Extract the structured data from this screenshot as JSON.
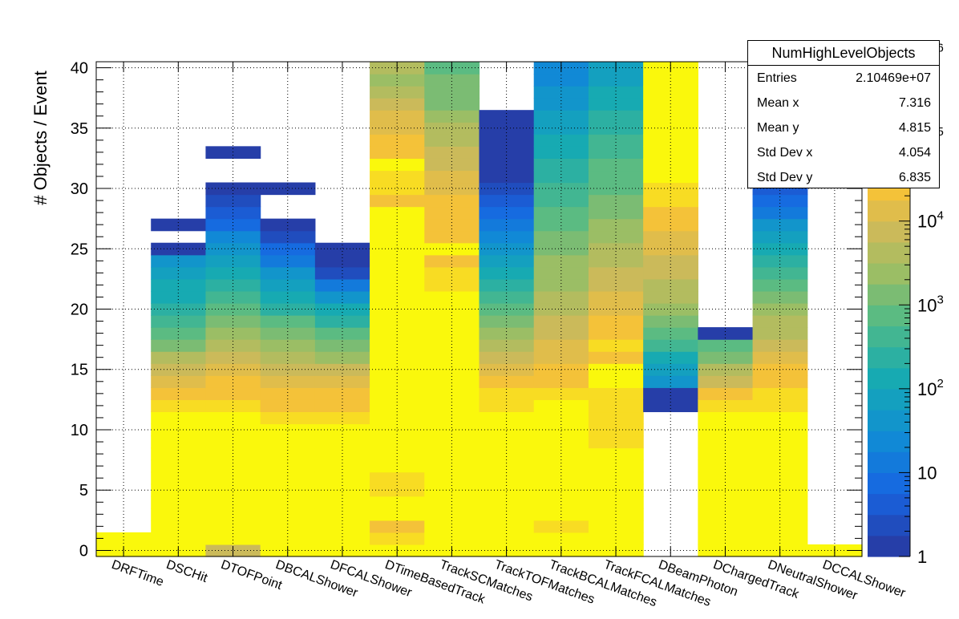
{
  "stats": {
    "title": "NumHighLevelObjects",
    "rows": [
      {
        "label": "Entries",
        "value": "2.10469e+07"
      },
      {
        "label": "Mean x",
        "value": "7.316"
      },
      {
        "label": "Mean y",
        "value": "4.815"
      },
      {
        "label": "Std Dev x",
        "value": "4.054"
      },
      {
        "label": "Std Dev y",
        "value": "6.835"
      }
    ]
  },
  "chart_data": {
    "type": "heatmap",
    "title": "",
    "xlabel": "",
    "ylabel": "# Objects / Event",
    "zscale": "log",
    "zlim": [
      1,
      100000
    ],
    "ylim": [
      -0.5,
      40.5
    ],
    "grid": true,
    "categories": [
      "DRFTime",
      "DSCHit",
      "DTOFPoint",
      "DBCALShower",
      "DFCALShower",
      "DTimeBasedTrack",
      "TrackSCMatches",
      "TrackTOFMatches",
      "TrackBCALMatches",
      "TrackFCALMatches",
      "DBeamPhoton",
      "DChargedTrack",
      "DNeutralShower",
      "DCCALShower"
    ],
    "y_ticks": [
      0,
      5,
      10,
      15,
      20,
      25,
      30,
      35,
      40
    ],
    "z_ticks": [
      {
        "value": 1,
        "label": "1"
      },
      {
        "value": 10,
        "label": "10"
      },
      {
        "value": 100,
        "label": "10^2"
      },
      {
        "value": 1000,
        "label": "10^3"
      },
      {
        "value": 10000,
        "label": "10^4"
      }
    ],
    "z_ticks_partial": [
      {
        "value": 100000,
        "label": "10^5"
      },
      {
        "value": 1000000,
        "label": "10^6"
      }
    ],
    "log10_counts": [
      {
        "0": 6.15,
        "1": 6.65
      },
      {
        "0": 5.2,
        "1": 5.25,
        "2": 5.2,
        "3": 5.15,
        "4": 5.2,
        "5": 5.25,
        "6": 5.25,
        "7": 5.25,
        "8": 5.2,
        "9": 5.1,
        "10": 4.95,
        "11": 4.75,
        "12": 4.55,
        "13": 4.3,
        "14": 4.05,
        "15": 3.8,
        "16": 3.5,
        "17": 3.2,
        "18": 2.9,
        "19": 2.6,
        "20": 2.4,
        "21": 2.2,
        "22": 2.0,
        "23": 1.8,
        "24": 1.6,
        "25": 0.15,
        "27": 0.15
      },
      {
        "0": 3.8,
        "1": 4.8,
        "2": 4.95,
        "3": 5.5,
        "4": 5.5,
        "5": 5.55,
        "6": 5.6,
        "7": 5.35,
        "8": 5.2,
        "9": 5.05,
        "10": 4.95,
        "11": 4.8,
        "12": 4.65,
        "13": 4.45,
        "14": 4.25,
        "15": 4.05,
        "16": 3.85,
        "17": 3.6,
        "18": 3.4,
        "19": 3.15,
        "20": 2.9,
        "21": 2.65,
        "22": 2.4,
        "23": 2.15,
        "24": 1.9,
        "25": 1.6,
        "26": 1.25,
        "27": 0.85,
        "28": 0.5,
        "29": 0.3,
        "30": 0.15,
        "33": 0.15
      },
      {
        "0": 5.2,
        "1": 5.25,
        "2": 5.25,
        "3": 5.25,
        "4": 5.25,
        "5": 5.2,
        "6": 5.2,
        "7": 5.15,
        "8": 5.05,
        "9": 4.9,
        "10": 4.75,
        "11": 4.6,
        "12": 4.45,
        "13": 4.3,
        "14": 4.1,
        "15": 3.9,
        "16": 3.65,
        "17": 3.35,
        "18": 3.05,
        "19": 2.75,
        "20": 2.45,
        "21": 2.15,
        "22": 1.85,
        "23": 1.5,
        "24": 1.15,
        "25": 0.75,
        "26": 0.3,
        "27": 0.15,
        "30": 0.15
      },
      {
        "0": 5.2,
        "1": 5.5,
        "2": 5.45,
        "3": 5.4,
        "4": 5.3,
        "5": 5.25,
        "6": 5.2,
        "7": 5.15,
        "8": 5.05,
        "9": 4.9,
        "10": 4.75,
        "11": 4.6,
        "12": 4.45,
        "13": 4.25,
        "14": 4.0,
        "15": 3.75,
        "16": 3.45,
        "17": 3.1,
        "18": 2.75,
        "19": 2.4,
        "20": 2.0,
        "21": 1.6,
        "22": 1.2,
        "23": 0.35,
        "24": 0.15,
        "25": 0.15
      },
      {
        "0": 5.7,
        "1": 4.6,
        "2": 4.4,
        "3": 5.5,
        "4": 5.35,
        "5": 4.6,
        "6": 4.6,
        "7": 5.3,
        "8": 5.25,
        "9": 5.25,
        "10": 5.2,
        "11": 5.15,
        "12": 5.55,
        "13": 5.25,
        "14": 5.3,
        "15": 5.5,
        "16": 5.2,
        "17": 5.2,
        "18": 5.0,
        "19": 5.2,
        "20": 5.45,
        "21": 5.05,
        "22": 4.85,
        "23": 4.85,
        "24": 4.9,
        "25": 5.3,
        "26": 4.85,
        "27": 5.3,
        "28": 4.75,
        "29": 4.35,
        "30": 4.55,
        "31": 4.6,
        "32": 4.85,
        "33": 4.4,
        "34": 4.3,
        "35": 4.15,
        "36": 4.0,
        "37": 3.8,
        "38": 3.6,
        "39": 3.3,
        "40": 3.55
      },
      {
        "0": 5.7,
        "1": 4.85,
        "2": 4.85,
        "3": 5.3,
        "4": 5.4,
        "5": 5.0,
        "6": 5.05,
        "7": 5.3,
        "8": 5.2,
        "9": 5.2,
        "10": 5.15,
        "11": 5.1,
        "12": 5.2,
        "13": 5.1,
        "14": 5.2,
        "15": 5.3,
        "16": 4.95,
        "17": 5.0,
        "18": 4.85,
        "19": 4.9,
        "20": 5.0,
        "21": 4.8,
        "22": 4.7,
        "23": 4.6,
        "24": 4.4,
        "25": 4.85,
        "26": 4.45,
        "27": 4.3,
        "28": 4.45,
        "29": 4.3,
        "30": 4.1,
        "31": 4.0,
        "32": 3.85,
        "33": 3.75,
        "34": 3.55,
        "35": 3.5,
        "36": 3.35,
        "37": 3.2,
        "38": 3.1,
        "39": 3.0,
        "40": 2.85
      },
      {
        "0": 5.7,
        "1": 5.25,
        "2": 5.2,
        "3": 5.6,
        "4": 5.3,
        "5": 5.1,
        "6": 5.05,
        "7": 5.2,
        "8": 5.05,
        "9": 5.0,
        "10": 4.95,
        "11": 4.8,
        "12": 4.65,
        "13": 4.5,
        "14": 4.3,
        "15": 4.05,
        "16": 3.8,
        "17": 3.55,
        "18": 3.3,
        "19": 3.0,
        "20": 2.75,
        "21": 2.5,
        "22": 2.25,
        "23": 2.0,
        "24": 1.75,
        "25": 1.5,
        "26": 1.25,
        "27": 1.0,
        "28": 0.75,
        "29": 0.5,
        "30": 0.35,
        "31": 0.2,
        "32": 0.15,
        "33": 0.15,
        "34": 0.15,
        "35": 0.15,
        "36": 0.15
      },
      {
        "0": 5.7,
        "1": 4.9,
        "2": 4.7,
        "3": 5.35,
        "4": 5.3,
        "5": 5.15,
        "6": 5.1,
        "7": 5.15,
        "8": 5.0,
        "9": 4.95,
        "10": 4.9,
        "11": 4.85,
        "12": 4.8,
        "13": 4.6,
        "14": 4.45,
        "15": 4.3,
        "16": 4.15,
        "17": 4.0,
        "18": 3.9,
        "19": 3.8,
        "20": 3.7,
        "21": 3.55,
        "22": 3.45,
        "23": 3.35,
        "24": 3.25,
        "25": 3.1,
        "26": 3.0,
        "27": 2.85,
        "28": 2.75,
        "29": 2.6,
        "30": 2.5,
        "31": 2.4,
        "32": 2.25,
        "33": 2.15,
        "34": 2.0,
        "35": 1.9,
        "36": 1.8,
        "37": 1.65,
        "38": 1.55,
        "39": 1.4,
        "40": 1.3
      },
      {
        "0": 5.7,
        "1": 5.05,
        "2": 4.95,
        "3": 5.45,
        "4": 5.35,
        "5": 5.2,
        "6": 5.15,
        "7": 5.35,
        "8": 5.2,
        "9": 4.65,
        "10": 4.6,
        "11": 4.65,
        "12": 4.55,
        "13": 4.65,
        "14": 4.75,
        "15": 4.8,
        "16": 4.45,
        "17": 4.5,
        "18": 4.3,
        "19": 4.25,
        "20": 4.2,
        "21": 4.05,
        "22": 3.95,
        "23": 3.8,
        "24": 3.65,
        "25": 3.5,
        "26": 3.4,
        "27": 3.3,
        "28": 3.2,
        "29": 3.05,
        "30": 2.95,
        "31": 2.85,
        "32": 2.75,
        "33": 2.6,
        "34": 2.5,
        "35": 2.4,
        "36": 2.3,
        "37": 2.2,
        "38": 2.1,
        "39": 1.95,
        "40": 1.85
      },
      {
        "12": 0.15,
        "13": 0.15,
        "14": 1.55,
        "15": 1.9,
        "16": 2.2,
        "17": 2.5,
        "18": 2.8,
        "19": 3.05,
        "20": 3.3,
        "21": 3.5,
        "22": 3.65,
        "23": 3.8,
        "24": 3.95,
        "25": 4.05,
        "26": 4.15,
        "27": 4.3,
        "28": 4.45,
        "29": 4.6,
        "30": 4.65,
        "31": 4.75,
        "32": 4.85,
        "33": 5.05,
        "34": 5.1,
        "35": 5.15,
        "36": 5.2,
        "37": 5.2,
        "38": 5.25,
        "39": 5.3,
        "40": 5.3
      },
      {
        "0": 5.2,
        "1": 5.3,
        "2": 5.3,
        "3": 5.25,
        "4": 5.2,
        "5": 5.15,
        "6": 5.1,
        "7": 5.05,
        "8": 5.0,
        "9": 4.95,
        "10": 4.9,
        "11": 4.8,
        "12": 4.6,
        "13": 4.3,
        "14": 3.95,
        "15": 3.55,
        "16": 3.15,
        "17": 2.75,
        "18": 0.15
      },
      {
        "0": 5.2,
        "1": 5.3,
        "2": 5.3,
        "3": 5.25,
        "4": 5.25,
        "5": 5.15,
        "6": 5.1,
        "7": 5.05,
        "8": 5.0,
        "9": 4.95,
        "10": 4.85,
        "11": 4.75,
        "12": 4.65,
        "13": 4.55,
        "14": 4.4,
        "15": 4.25,
        "16": 4.1,
        "17": 3.9,
        "18": 3.7,
        "19": 3.5,
        "20": 3.3,
        "21": 3.05,
        "22": 2.8,
        "23": 2.55,
        "24": 2.3,
        "25": 2.05,
        "26": 1.8,
        "27": 1.5,
        "28": 1.2,
        "29": 0.9,
        "30": 0.6,
        "31": 0.45,
        "32": 0.35,
        "33": 0.25,
        "34": 0.2,
        "35": 0.15
      },
      {
        "0": 6.65
      }
    ]
  }
}
